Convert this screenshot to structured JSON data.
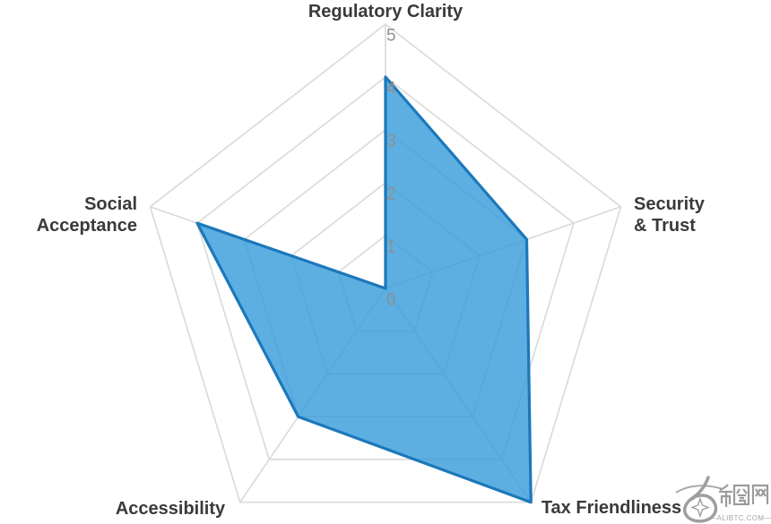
{
  "chart_data": {
    "type": "radar",
    "title": "",
    "categories": [
      "Regulatory Clarity",
      "Security & Trust",
      "Tax Friendliness",
      "Accessibility",
      "Social Acceptance"
    ],
    "values": [
      4,
      3,
      5,
      3,
      4
    ],
    "label_display": [
      "Regulatory Clarity",
      "Security\n& Trust",
      "Tax Friendliness",
      "Accessibility",
      "Social\nAcceptance"
    ],
    "scale_min": 0,
    "scale_max": 5,
    "scale_ticks": [
      "0",
      "1",
      "2",
      "3",
      "4",
      "5"
    ],
    "grid": true,
    "legend": false,
    "polygon_closes_through_center": true,
    "colors": {
      "fill": "rgba(52,155,218,0.8)",
      "stroke": "#1b78ba",
      "grid": "#dbdbdb",
      "tick_text": "#8f8f8f",
      "label_text": "#3a3a3a"
    }
  },
  "watermark": {
    "site_name": "币圈网",
    "site_url": "—ALIBTC.COM—",
    "logo": "swirl-star-icon",
    "color": "#9b9b9b"
  }
}
